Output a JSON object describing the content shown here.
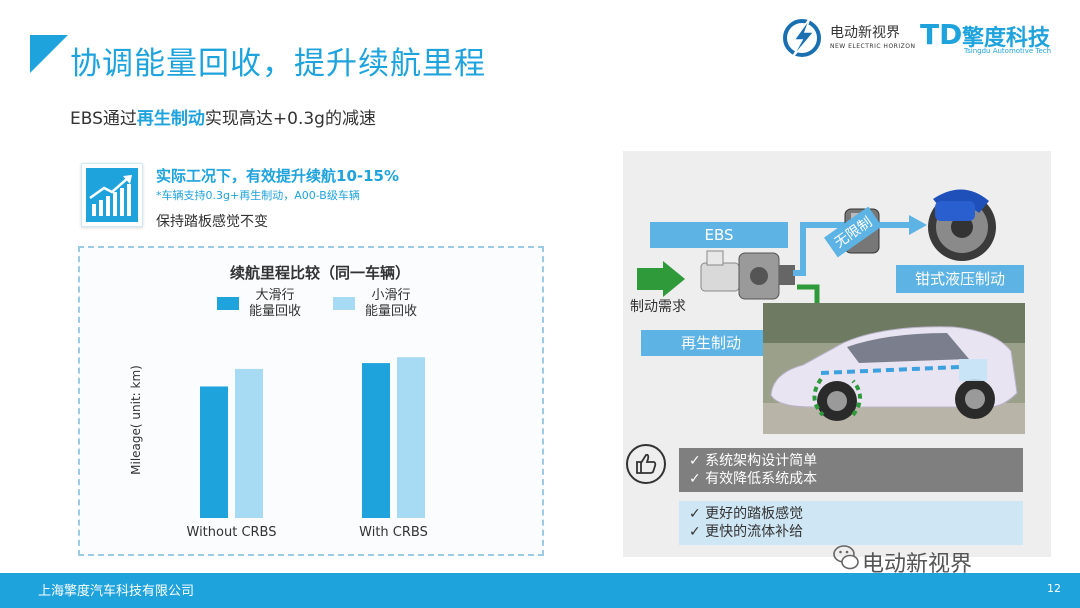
{
  "header": {
    "title": "协调能量回收，提升续航里程",
    "subtitle_prefix": "EBS通过",
    "subtitle_highlight": "再生制动",
    "subtitle_suffix": "实现高达+0.3g的减速"
  },
  "logos": {
    "brand1_cn": "电动新视界",
    "brand1_en": "NEW ELECTRIC HORIZON",
    "brand2_mark": "TD",
    "brand2_cn": "擎度科技",
    "brand2_en": "Tsingdu Automotive Tech"
  },
  "benefit": {
    "headline": "实际工况下，有效提升续航10-15%",
    "note": "*车辆支持0.3g+再生制动，A00-B级车辆",
    "pedal": "保持踏板感觉不变"
  },
  "chart_data": {
    "type": "bar",
    "title": "续航里程比较（同一车辆）",
    "categories": [
      "Without CRBS",
      "With CRBS"
    ],
    "series": [
      {
        "name": "大滑行 能量回收",
        "name_line1": "大滑行",
        "name_line2": "能量回收",
        "color": "#1fa3dd",
        "values": [
          0.45,
          0.53
        ]
      },
      {
        "name": "小滑行 能量回收",
        "name_line1": "小滑行",
        "name_line2": "能量回收",
        "color": "#a6dbf3",
        "values": [
          0.51,
          0.55
        ]
      }
    ],
    "ylabel": "Mileage( unit: km)",
    "xlabel": "",
    "ylim": [
      0,
      0.65
    ],
    "grid": false,
    "legend_position": "top-center"
  },
  "diagram": {
    "ebs_label": "EBS",
    "demand_label": "制动需求",
    "regen_label": "再生制动",
    "unlimited_label": "无限制",
    "caliper_label": "钳式液压制动"
  },
  "features": {
    "group1": [
      "✓ 系统架构设计简单",
      "✓ 有效降低系统成本"
    ],
    "group2": [
      "✓ 更好的踏板感觉",
      "✓ 更快的流体补给"
    ]
  },
  "watermark": "电动新视界",
  "footer": {
    "company": "上海擎度汽车科技有限公司",
    "page_number": "12"
  },
  "colors": {
    "accent": "#1fa3dd",
    "label_box": "#5cb3e4",
    "green_arrow": "#2e9a3a"
  }
}
